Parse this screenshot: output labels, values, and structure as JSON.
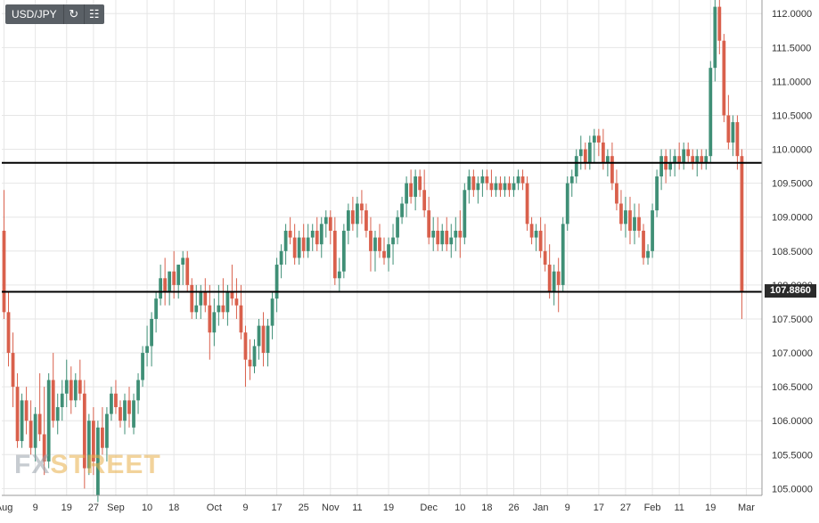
{
  "toolbar": {
    "symbol": "USD/JPY",
    "refresh_icon": "refresh-icon",
    "chart_type_icon": "candlestick-toggle-icon"
  },
  "watermark": {
    "fx": "FX",
    "street": "STREET"
  },
  "price_label": "107.8860",
  "colors": {
    "up": "#3f8f76",
    "down": "#d9604c",
    "grid": "#e6e6e6",
    "line": "#000000",
    "axis_text": "#333333",
    "price_tag": "#2b2b2b"
  },
  "chart_data": {
    "type": "candlestick",
    "ylim": [
      104.9,
      112.2
    ],
    "y_ticks": [
      "105.0000",
      "105.5000",
      "106.0000",
      "106.5000",
      "107.0000",
      "107.5000",
      "108.0000",
      "108.5000",
      "109.0000",
      "109.5000",
      "110.0000",
      "110.5000",
      "111.0000",
      "111.5000",
      "112.0000"
    ],
    "x_ticks": [
      "Aug",
      "9",
      "19",
      "27",
      "Sep",
      "10",
      "18",
      "Oct",
      "9",
      "17",
      "25",
      "Nov",
      "11",
      "19",
      "Dec",
      "10",
      "18",
      "26",
      "Jan",
      "9",
      "17",
      "27",
      "Feb",
      "11",
      "19",
      "Mar"
    ],
    "x_tick_index": [
      0,
      7,
      14,
      20,
      25,
      32,
      38,
      47,
      54,
      61,
      67,
      73,
      79,
      86,
      95,
      102,
      108,
      114,
      120,
      126,
      133,
      139,
      145,
      151,
      158,
      166
    ],
    "num_slots": 170,
    "horizontal_levels": [
      109.8,
      107.9
    ],
    "grid": true,
    "candles": [
      [
        0,
        108.8,
        109.4,
        107.5,
        107.6
      ],
      [
        1,
        107.6,
        107.9,
        106.8,
        107.0
      ],
      [
        2,
        107.0,
        107.3,
        106.2,
        106.5
      ],
      [
        3,
        106.5,
        106.7,
        105.6,
        105.7
      ],
      [
        4,
        105.7,
        106.4,
        105.6,
        106.3
      ],
      [
        5,
        106.3,
        106.5,
        105.8,
        106.0
      ],
      [
        6,
        106.0,
        106.3,
        105.5,
        105.6
      ],
      [
        7,
        105.6,
        106.2,
        105.4,
        106.1
      ],
      [
        8,
        106.1,
        106.7,
        105.7,
        105.8
      ],
      [
        9,
        105.8,
        106.5,
        105.2,
        105.4
      ],
      [
        10,
        105.4,
        106.7,
        105.3,
        106.6
      ],
      [
        11,
        106.6,
        107.0,
        105.9,
        106.0
      ],
      [
        12,
        106.0,
        106.4,
        105.8,
        106.2
      ],
      [
        13,
        106.2,
        106.6,
        106.0,
        106.4
      ],
      [
        14,
        106.4,
        106.9,
        106.2,
        106.6
      ],
      [
        15,
        106.6,
        106.8,
        106.1,
        106.3
      ],
      [
        16,
        106.3,
        106.7,
        106.2,
        106.6
      ],
      [
        17,
        106.6,
        106.9,
        106.3,
        106.4
      ],
      [
        18,
        106.4,
        106.6,
        105.0,
        105.3
      ],
      [
        19,
        105.3,
        106.1,
        105.2,
        106.0
      ],
      [
        20,
        106.0,
        106.2,
        105.2,
        105.4
      ],
      [
        21,
        104.9,
        106.0,
        104.8,
        105.9
      ],
      [
        22,
        105.9,
        106.2,
        105.5,
        105.6
      ],
      [
        23,
        105.6,
        106.2,
        105.4,
        106.1
      ],
      [
        24,
        106.1,
        106.5,
        106.0,
        106.4
      ],
      [
        25,
        106.4,
        106.6,
        106.1,
        106.2
      ],
      [
        26,
        106.2,
        106.3,
        105.9,
        106.0
      ],
      [
        27,
        106.0,
        106.4,
        105.8,
        106.3
      ],
      [
        28,
        106.3,
        106.5,
        105.9,
        106.1
      ],
      [
        29,
        105.9,
        106.4,
        105.8,
        106.3
      ],
      [
        30,
        106.3,
        106.7,
        106.1,
        106.6
      ],
      [
        31,
        106.6,
        107.1,
        106.5,
        107.0
      ],
      [
        32,
        107.0,
        107.4,
        106.8,
        107.1
      ],
      [
        33,
        107.1,
        107.6,
        106.8,
        107.5
      ],
      [
        34,
        107.5,
        107.9,
        107.3,
        107.8
      ],
      [
        35,
        107.8,
        108.3,
        107.7,
        108.1
      ],
      [
        36,
        108.1,
        108.4,
        107.7,
        107.9
      ],
      [
        37,
        107.9,
        108.2,
        107.7,
        108.2
      ],
      [
        38,
        108.2,
        108.5,
        107.8,
        108.0
      ],
      [
        39,
        108.0,
        108.3,
        107.8,
        108.3
      ],
      [
        40,
        108.3,
        108.5,
        108.0,
        108.4
      ],
      [
        41,
        108.4,
        108.5,
        107.9,
        108.0
      ],
      [
        42,
        108.0,
        108.1,
        107.5,
        107.6
      ],
      [
        43,
        107.6,
        108.0,
        107.5,
        107.7
      ],
      [
        44,
        107.7,
        108.0,
        107.5,
        107.9
      ],
      [
        45,
        107.9,
        108.1,
        107.6,
        107.7
      ],
      [
        46,
        107.7,
        108.0,
        106.9,
        107.3
      ],
      [
        47,
        107.3,
        107.8,
        107.1,
        107.6
      ],
      [
        48,
        107.6,
        108.0,
        107.4,
        107.7
      ],
      [
        49,
        107.7,
        108.1,
        107.5,
        107.6
      ],
      [
        50,
        107.6,
        108.0,
        107.4,
        107.9
      ],
      [
        51,
        107.9,
        108.3,
        107.7,
        107.8
      ],
      [
        52,
        107.8,
        108.1,
        107.5,
        107.7
      ],
      [
        53,
        107.7,
        108.0,
        107.2,
        107.3
      ],
      [
        54,
        107.3,
        107.4,
        106.5,
        106.9
      ],
      [
        55,
        106.9,
        107.2,
        106.6,
        106.8
      ],
      [
        56,
        106.8,
        107.2,
        106.7,
        107.1
      ],
      [
        57,
        107.1,
        107.5,
        106.9,
        107.4
      ],
      [
        58,
        107.4,
        107.6,
        106.8,
        107.0
      ],
      [
        59,
        107.0,
        107.5,
        106.8,
        107.4
      ],
      [
        60,
        107.4,
        107.9,
        107.2,
        107.8
      ],
      [
        61,
        107.8,
        108.4,
        107.6,
        108.3
      ],
      [
        62,
        108.3,
        108.6,
        108.1,
        108.5
      ],
      [
        63,
        108.5,
        108.9,
        108.3,
        108.8
      ],
      [
        64,
        108.8,
        109.0,
        108.6,
        108.7
      ],
      [
        65,
        108.7,
        108.9,
        108.3,
        108.4
      ],
      [
        66,
        108.4,
        108.8,
        108.3,
        108.7
      ],
      [
        67,
        108.7,
        108.9,
        108.4,
        108.5
      ],
      [
        68,
        108.5,
        108.9,
        108.4,
        108.7
      ],
      [
        69,
        108.7,
        108.9,
        108.5,
        108.8
      ],
      [
        70,
        108.8,
        109.0,
        108.5,
        108.6
      ],
      [
        71,
        108.6,
        109.0,
        108.4,
        108.9
      ],
      [
        72,
        108.9,
        109.1,
        108.7,
        109.0
      ],
      [
        73,
        109.0,
        109.1,
        108.6,
        108.8
      ],
      [
        74,
        108.8,
        109.0,
        108.0,
        108.1
      ],
      [
        75,
        108.1,
        108.4,
        107.9,
        108.2
      ],
      [
        76,
        108.2,
        108.9,
        108.1,
        108.8
      ],
      [
        77,
        108.8,
        109.2,
        108.6,
        109.1
      ],
      [
        78,
        109.1,
        109.3,
        108.8,
        108.9
      ],
      [
        79,
        108.9,
        109.3,
        108.7,
        109.2
      ],
      [
        80,
        109.2,
        109.4,
        108.9,
        109.1
      ],
      [
        81,
        109.1,
        109.2,
        108.7,
        108.8
      ],
      [
        82,
        108.8,
        109.0,
        108.2,
        108.5
      ],
      [
        83,
        108.5,
        108.8,
        108.2,
        108.7
      ],
      [
        84,
        108.7,
        108.9,
        108.4,
        108.5
      ],
      [
        85,
        108.5,
        108.7,
        108.3,
        108.4
      ],
      [
        86,
        108.4,
        108.7,
        108.2,
        108.6
      ],
      [
        87,
        108.6,
        108.9,
        108.3,
        108.7
      ],
      [
        88,
        108.7,
        109.1,
        108.6,
        109.0
      ],
      [
        89,
        109.0,
        109.3,
        108.9,
        109.2
      ],
      [
        90,
        109.2,
        109.6,
        109.0,
        109.5
      ],
      [
        91,
        109.5,
        109.7,
        109.2,
        109.3
      ],
      [
        92,
        109.3,
        109.7,
        109.1,
        109.6
      ],
      [
        93,
        109.6,
        109.7,
        109.3,
        109.4
      ],
      [
        94,
        109.4,
        109.7,
        109.0,
        109.1
      ],
      [
        95,
        109.1,
        109.3,
        108.6,
        108.7
      ],
      [
        96,
        108.7,
        109.0,
        108.5,
        108.8
      ],
      [
        97,
        108.8,
        109.0,
        108.5,
        108.6
      ],
      [
        98,
        108.6,
        108.9,
        108.5,
        108.8
      ],
      [
        99,
        108.8,
        109.0,
        108.5,
        108.6
      ],
      [
        100,
        108.6,
        108.9,
        108.4,
        108.7
      ],
      [
        101,
        108.7,
        109.0,
        108.5,
        108.8
      ],
      [
        102,
        108.8,
        109.1,
        108.4,
        108.7
      ],
      [
        103,
        108.7,
        109.5,
        108.6,
        109.4
      ],
      [
        104,
        109.4,
        109.7,
        109.2,
        109.6
      ],
      [
        105,
        109.6,
        109.7,
        109.3,
        109.4
      ],
      [
        106,
        109.4,
        109.6,
        109.2,
        109.5
      ],
      [
        107,
        109.5,
        109.7,
        109.3,
        109.6
      ],
      [
        108,
        109.6,
        109.7,
        109.4,
        109.5
      ],
      [
        109,
        109.5,
        109.7,
        109.3,
        109.4
      ],
      [
        110,
        109.4,
        109.6,
        109.3,
        109.5
      ],
      [
        111,
        109.5,
        109.6,
        109.3,
        109.4
      ],
      [
        112,
        109.4,
        109.6,
        109.3,
        109.5
      ],
      [
        113,
        109.5,
        109.6,
        109.3,
        109.4
      ],
      [
        114,
        109.4,
        109.6,
        109.3,
        109.5
      ],
      [
        115,
        109.5,
        109.7,
        109.4,
        109.6
      ],
      [
        116,
        109.6,
        109.7,
        109.4,
        109.5
      ],
      [
        117,
        109.5,
        109.6,
        108.8,
        108.9
      ],
      [
        118,
        108.9,
        109.0,
        108.6,
        108.7
      ],
      [
        119,
        108.7,
        108.9,
        108.5,
        108.8
      ],
      [
        120,
        108.8,
        109.0,
        108.4,
        108.5
      ],
      [
        121,
        108.5,
        108.9,
        108.2,
        108.3
      ],
      [
        122,
        108.3,
        108.6,
        107.8,
        107.9
      ],
      [
        123,
        107.9,
        108.3,
        107.7,
        108.2
      ],
      [
        124,
        108.2,
        108.4,
        107.6,
        108.0
      ],
      [
        125,
        108.0,
        109.0,
        107.9,
        108.9
      ],
      [
        126,
        108.9,
        109.6,
        108.8,
        109.5
      ],
      [
        127,
        109.5,
        109.7,
        109.3,
        109.6
      ],
      [
        128,
        109.6,
        110.0,
        109.5,
        109.9
      ],
      [
        129,
        109.9,
        110.2,
        109.7,
        110.0
      ],
      [
        130,
        110.0,
        110.1,
        109.7,
        109.8
      ],
      [
        131,
        109.8,
        110.2,
        109.7,
        110.1
      ],
      [
        132,
        110.1,
        110.3,
        109.8,
        110.2
      ],
      [
        133,
        110.2,
        110.3,
        109.9,
        110.1
      ],
      [
        134,
        110.1,
        110.3,
        109.7,
        109.8
      ],
      [
        135,
        109.8,
        110.0,
        109.6,
        109.9
      ],
      [
        136,
        109.9,
        110.1,
        109.4,
        109.5
      ],
      [
        137,
        109.5,
        109.7,
        109.1,
        109.2
      ],
      [
        138,
        109.2,
        109.4,
        108.8,
        108.9
      ],
      [
        139,
        108.9,
        109.3,
        108.7,
        109.1
      ],
      [
        140,
        109.1,
        109.3,
        108.6,
        108.8
      ],
      [
        141,
        108.8,
        109.2,
        108.6,
        109.0
      ],
      [
        142,
        109.0,
        109.2,
        108.7,
        108.8
      ],
      [
        143,
        108.8,
        108.9,
        108.3,
        108.4
      ],
      [
        144,
        108.4,
        108.6,
        108.3,
        108.5
      ],
      [
        145,
        108.5,
        109.2,
        108.4,
        109.1
      ],
      [
        146,
        109.1,
        109.7,
        109.0,
        109.6
      ],
      [
        147,
        109.6,
        110.0,
        109.4,
        109.9
      ],
      [
        148,
        109.9,
        110.0,
        109.5,
        109.7
      ],
      [
        149,
        109.7,
        110.0,
        109.6,
        109.8
      ],
      [
        150,
        109.8,
        110.0,
        109.6,
        109.9
      ],
      [
        151,
        109.9,
        110.1,
        109.7,
        109.8
      ],
      [
        152,
        109.8,
        110.1,
        109.7,
        110.0
      ],
      [
        153,
        110.0,
        110.1,
        109.8,
        109.9
      ],
      [
        154,
        109.9,
        110.0,
        109.7,
        109.8
      ],
      [
        155,
        109.8,
        110.0,
        109.6,
        109.9
      ],
      [
        156,
        109.9,
        110.0,
        109.7,
        109.8
      ],
      [
        157,
        109.8,
        110.0,
        109.7,
        109.9
      ],
      [
        158,
        109.9,
        111.3,
        109.8,
        111.2
      ],
      [
        159,
        111.2,
        112.2,
        111.0,
        112.1
      ],
      [
        160,
        112.1,
        112.2,
        111.4,
        111.6
      ],
      [
        161,
        111.6,
        111.7,
        110.4,
        110.5
      ],
      [
        162,
        110.5,
        110.8,
        110.0,
        110.1
      ],
      [
        163,
        110.1,
        110.5,
        109.9,
        110.4
      ],
      [
        164,
        110.4,
        110.5,
        109.7,
        109.9
      ],
      [
        165,
        109.9,
        110.0,
        107.5,
        107.9
      ]
    ]
  }
}
